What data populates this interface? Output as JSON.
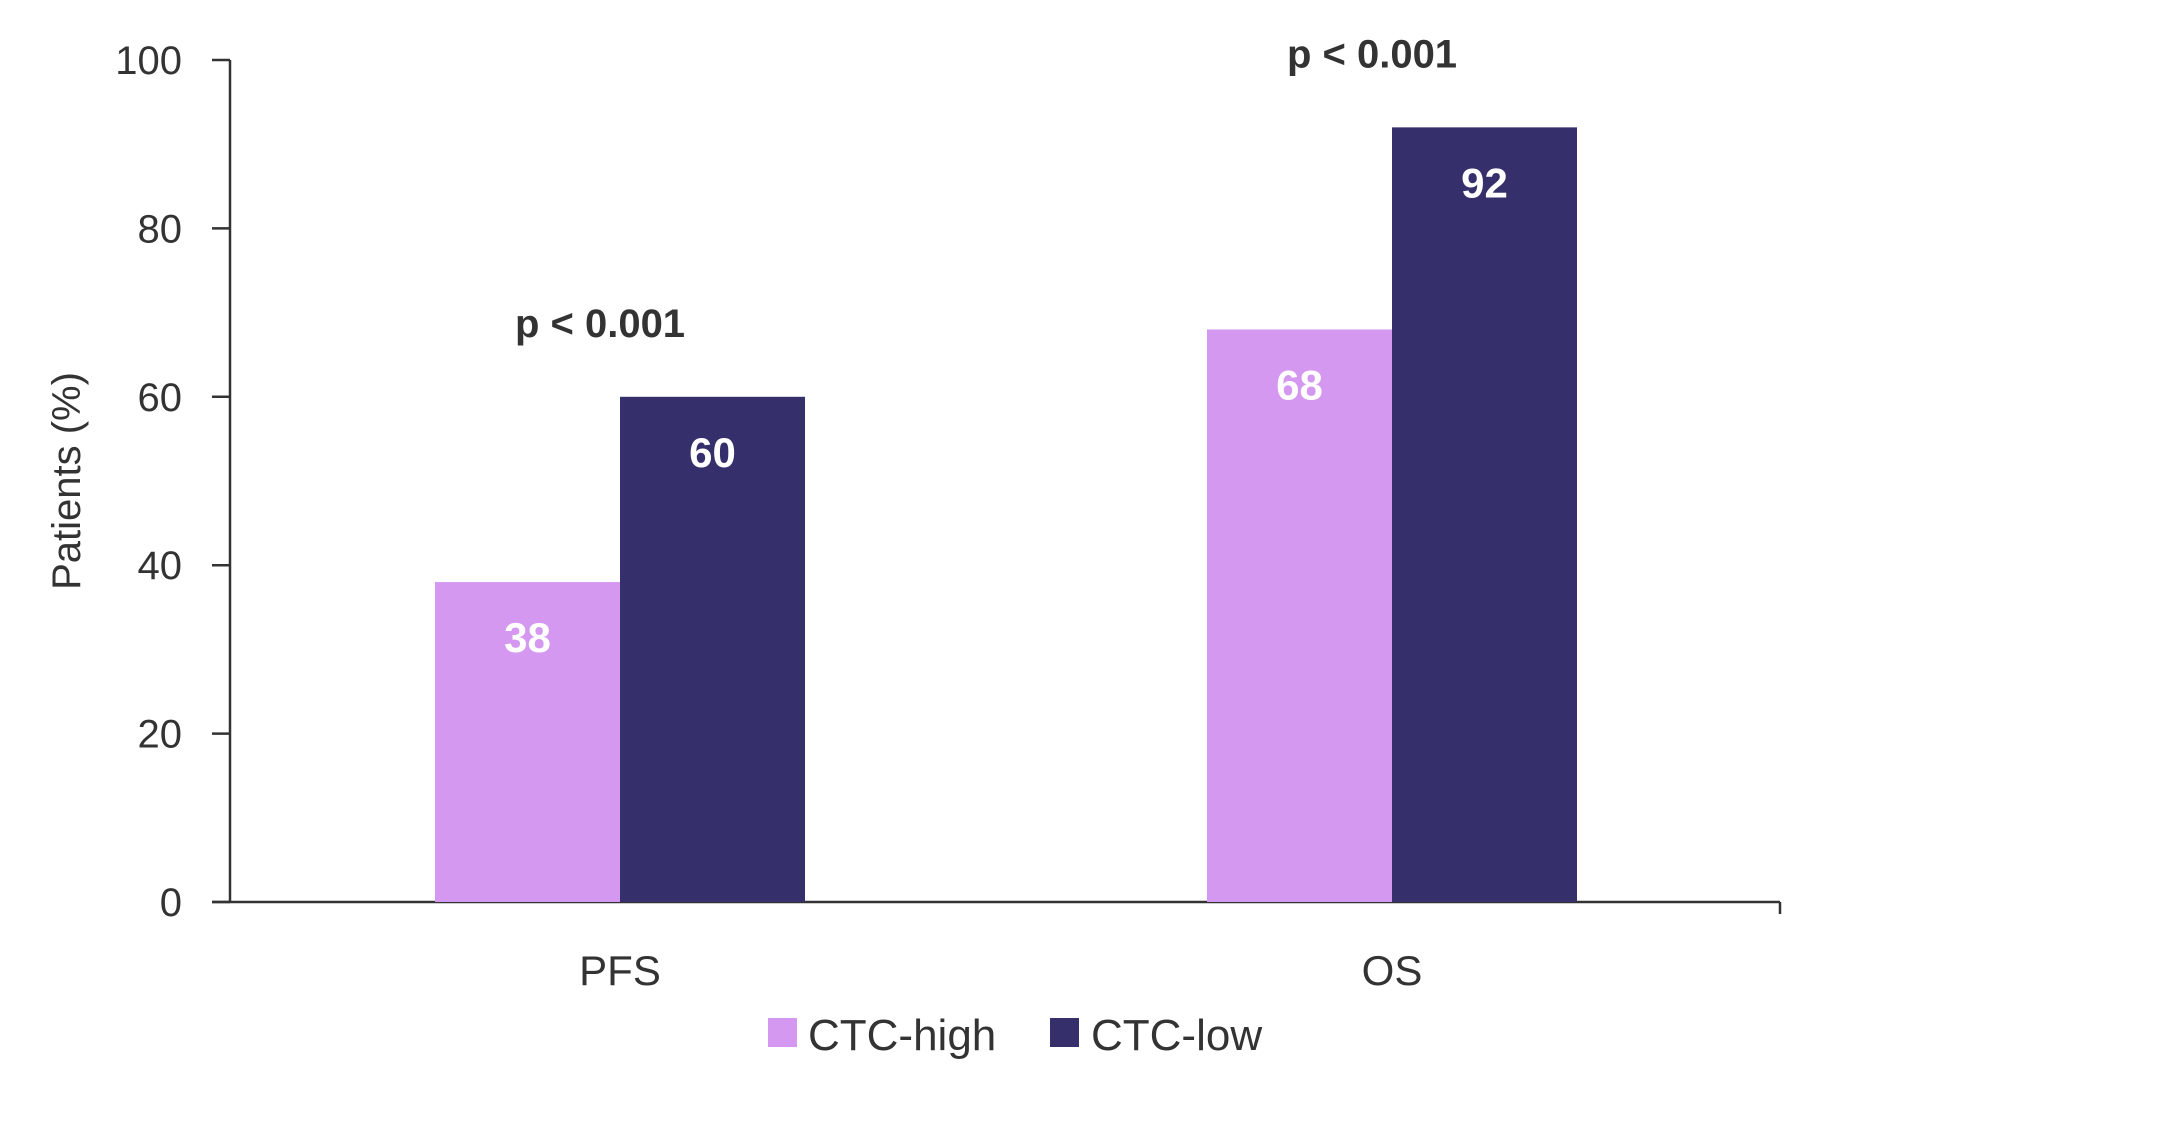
{
  "chart_data": {
    "type": "bar",
    "ylabel": "Patients (%)",
    "ylim": [
      0,
      100
    ],
    "yticks": [
      "0",
      "20",
      "40",
      "60",
      "80",
      "100"
    ],
    "categories": [
      "PFS",
      "OS"
    ],
    "series": [
      {
        "name": "CTC-high",
        "color": "#d598f0",
        "values": [
          38,
          68
        ]
      },
      {
        "name": "CTC-low",
        "color": "#35306b",
        "values": [
          60,
          92
        ]
      }
    ],
    "annotations": [
      "p < 0.001",
      "p < 0.001"
    ],
    "legend_position": "bottom-center",
    "grid": false
  }
}
